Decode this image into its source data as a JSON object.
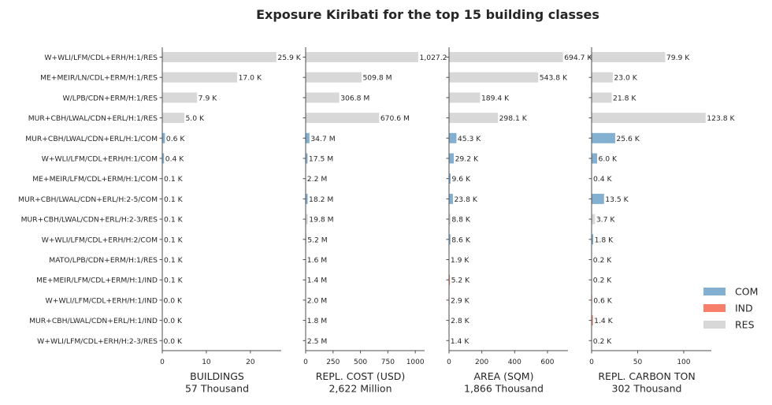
{
  "chart_data": {
    "type": "bar",
    "title": "Exposure Kiribati for the top 15 building classes",
    "categories": [
      "W+WLI/LFM/CDL+ERH/H:1/RES",
      "ME+MEIR/LN/CDL+ERM/H:1/RES",
      "W/LPB/CDN+ERM/H:1/RES",
      "MUR+CBH/LWAL/CDN+ERL/H:1/RES",
      "MUR+CBH/LWAL/CDN+ERL/H:1/COM",
      "W+WLI/LFM/CDL+ERH/H:1/COM",
      "ME+MEIR/LFM/CDL+ERM/H:1/COM",
      "MUR+CBH/LWAL/CDN+ERL/H:2-5/COM",
      "MUR+CBH/LWAL/CDN+ERL/H:2-3/RES",
      "W+WLI/LFM/CDL+ERH/H:2/COM",
      "MATO/LPB/CDN+ERM/H:1/RES",
      "ME+MEIR/LFM/CDL+ERM/H:1/IND",
      "W+WLI/LFM/CDL+ERH/H:1/IND",
      "MUR+CBH/LWAL/CDN+ERL/H:1/IND",
      "W+WLI/LFM/CDL+ERH/H:2-3/RES"
    ],
    "occupancy": [
      "RES",
      "RES",
      "RES",
      "RES",
      "COM",
      "COM",
      "COM",
      "COM",
      "RES",
      "COM",
      "RES",
      "IND",
      "IND",
      "IND",
      "RES"
    ],
    "colors": {
      "COM": "#83b0d0",
      "IND": "#f67e6b",
      "RES": "#d8d8d8"
    },
    "legend": {
      "position": "right",
      "items": [
        "COM",
        "IND",
        "RES"
      ]
    },
    "panels": [
      {
        "xlabel": "BUILDINGS",
        "total": "57 Thousand",
        "xlim": [
          0,
          27
        ],
        "ticks": [
          0,
          10,
          20
        ],
        "tick_labels": [
          "0",
          "10",
          "20"
        ],
        "values": [
          25.9,
          17.0,
          7.9,
          5.0,
          0.6,
          0.4,
          0.1,
          0.1,
          0.1,
          0.1,
          0.1,
          0.1,
          0.0,
          0.0,
          0.0
        ],
        "labels": [
          "25.9 K",
          "17.0 K",
          "7.9 K",
          "5.0 K",
          "0.6 K",
          "0.4 K",
          "0.1 K",
          "0.1 K",
          "0.1 K",
          "0.1 K",
          "0.1 K",
          "0.1 K",
          "0.0 K",
          "0.0 K",
          "0.0 K"
        ]
      },
      {
        "xlabel": "REPL. COST (USD)",
        "total": "2,622 Million",
        "xlim": [
          0,
          1085
        ],
        "ticks": [
          0,
          250,
          500,
          750,
          1000
        ],
        "tick_labels": [
          "0",
          "250",
          "500",
          "750",
          "1000"
        ],
        "values": [
          1027.2,
          509.8,
          306.8,
          670.6,
          34.7,
          17.5,
          2.2,
          18.2,
          19.8,
          5.2,
          1.6,
          1.4,
          2.0,
          1.8,
          2.5
        ],
        "labels": [
          "1,027.2 M",
          "509.8 M",
          "306.8 M",
          "670.6 M",
          "34.7 M",
          "17.5 M",
          "2.2 M",
          "18.2 M",
          "19.8 M",
          "5.2 M",
          "1.6 M",
          "1.4 M",
          "2.0 M",
          "1.8 M",
          "2.5 M"
        ]
      },
      {
        "xlabel": "AREA (SQM)",
        "total": "1,866 Thousand",
        "xlim": [
          0,
          725
        ],
        "ticks": [
          0,
          200,
          400,
          600
        ],
        "tick_labels": [
          "0",
          "200",
          "400",
          "600"
        ],
        "values": [
          694.7,
          543.8,
          189.4,
          298.1,
          45.3,
          29.2,
          9.6,
          23.8,
          8.8,
          8.6,
          1.9,
          5.2,
          2.9,
          2.8,
          1.4
        ],
        "labels": [
          "694.7 K",
          "543.8 K",
          "189.4 K",
          "298.1 K",
          "45.3 K",
          "29.2 K",
          "9.6 K",
          "23.8 K",
          "8.8 K",
          "8.6 K",
          "1.9 K",
          "5.2 K",
          "2.9 K",
          "2.8 K",
          "1.4 K"
        ]
      },
      {
        "xlabel": "REPL. CARBON TON",
        "total": "302 Thousand",
        "xlim": [
          0,
          130
        ],
        "ticks": [
          0,
          50,
          100
        ],
        "tick_labels": [
          "0",
          "50",
          "100"
        ],
        "values": [
          79.9,
          23.0,
          21.8,
          123.8,
          25.6,
          6.0,
          0.4,
          13.5,
          3.7,
          1.8,
          0.2,
          0.2,
          0.6,
          1.4,
          0.2
        ],
        "labels": [
          "79.9 K",
          "23.0 K",
          "21.8 K",
          "123.8 K",
          "25.6 K",
          "6.0 K",
          "0.4 K",
          "13.5 K",
          "3.7 K",
          "1.8 K",
          "0.2 K",
          "0.2 K",
          "0.6 K",
          "1.4 K",
          "0.2 K"
        ]
      }
    ]
  }
}
